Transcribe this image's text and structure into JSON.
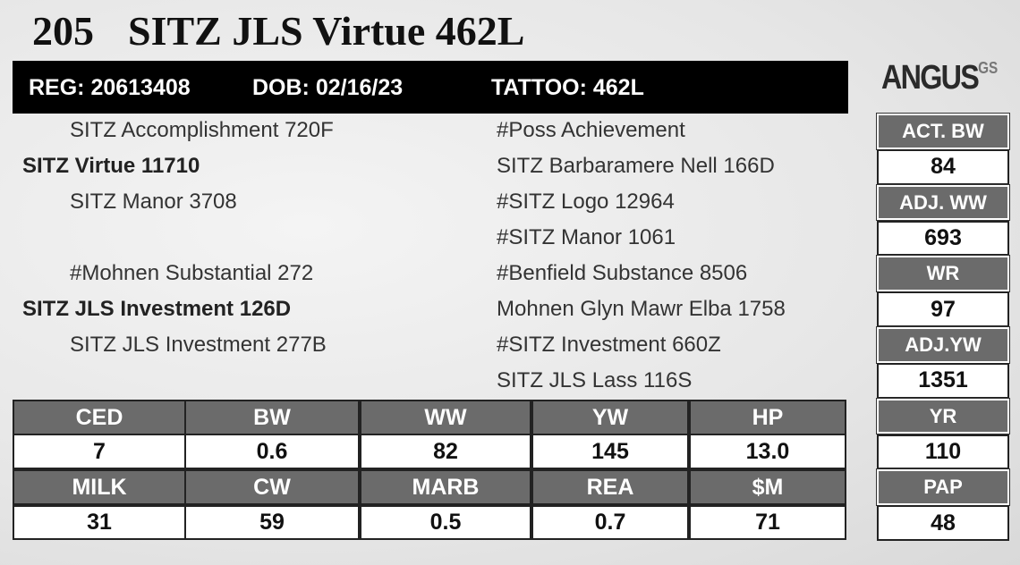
{
  "header": {
    "lot": "205",
    "name": "SITZ JLS Virtue 462L"
  },
  "id_bar": {
    "reg": "REG: 20613408",
    "dob": "DOB: 02/16/23",
    "tattoo": "TATTOO: 462L"
  },
  "logo": {
    "brand": "ANGUS",
    "suffix": "GS"
  },
  "pedigree": {
    "left": [
      "SITZ Accomplishment 720F",
      "SITZ Virtue 11710",
      "SITZ Manor 3708",
      null,
      "#Mohnen Substantial 272",
      "SITZ JLS Investment 126D",
      "SITZ JLS Investment 277B",
      null
    ],
    "right": [
      "#Poss Achievement",
      "SITZ Barbaramere Nell 166D",
      "#SITZ Logo 12964",
      "#SITZ Manor 1061",
      "#Benfield Substance 8506",
      "Mohnen Glyn Mawr Elba 1758",
      "#SITZ Investment 660Z",
      "SITZ JLS Lass 116S"
    ]
  },
  "side_stats": [
    {
      "label": "ACT. BW",
      "value": "84"
    },
    {
      "label": "ADJ. WW",
      "value": "693"
    },
    {
      "label": "WR",
      "value": "97"
    },
    {
      "label": "ADJ.YW",
      "value": "1351"
    },
    {
      "label": "YR",
      "value": "110"
    },
    {
      "label": "PAP",
      "value": "48"
    }
  ],
  "epd_table": {
    "rows": [
      [
        "CED",
        "BW",
        "WW",
        "YW",
        "HP"
      ],
      [
        "7",
        "0.6",
        "82",
        "145",
        "13.0"
      ],
      [
        "MILK",
        "CW",
        "MARB",
        "REA",
        "$M"
      ],
      [
        "31",
        "59",
        "0.5",
        "0.7",
        "71"
      ]
    ]
  }
}
